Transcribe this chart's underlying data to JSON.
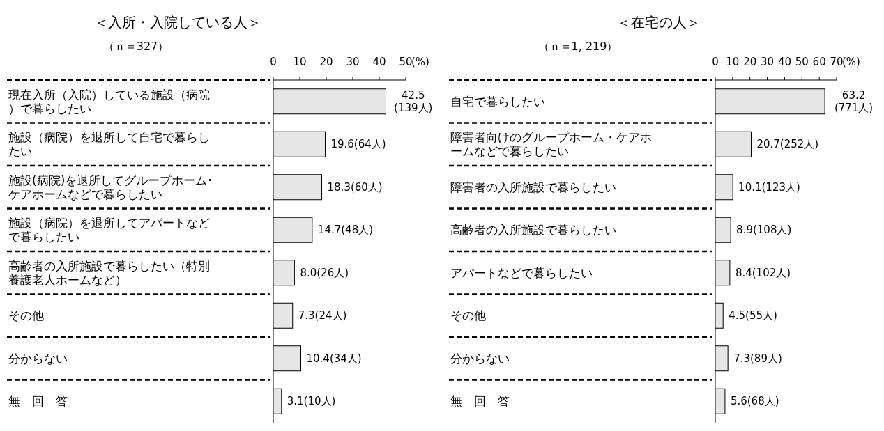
{
  "chart_data": [
    {
      "type": "bar",
      "orientation": "horizontal",
      "title": "＜入所・入院している人＞",
      "subtitle": "（ｎ＝327）",
      "x2label": "(%)",
      "color": "#e6e6e6",
      "x2lim": [
        0,
        50
      ],
      "x2ticks": [
        0,
        10,
        20,
        30,
        40,
        50
      ],
      "categories": [
        "現在入所（入院）している施設（病院）で暮らしたい",
        "施設（病院）を退所して自宅で暮らしたい",
        "施設(病院)を退所してグループホーム･ケアホームなどで暮らしたい",
        "施設（病院）を退所してアパートなどで暮らしたい",
        "高齢者の入所施設で暮らしたい（特別養護老人ホームなど）",
        "その他",
        "分からない",
        "無　回　答"
      ],
      "values": [
        42.5,
        19.6,
        18.3,
        14.7,
        8.0,
        7.3,
        10.4,
        3.1
      ],
      "value_labels": [
        "42.5(139人)",
        "19.6(64人)",
        "18.3(60人)",
        "14.7(48人)",
        "8.0(26人)",
        "7.3(24人)",
        "10.4(34人)",
        "3.1(10人)"
      ]
    },
    {
      "type": "bar",
      "orientation": "horizontal",
      "title": "＜在宅の人＞",
      "subtitle": "（ｎ＝1, 219）",
      "x2label": "(%)",
      "color": "#e6e6e6",
      "x2lim": [
        0,
        70
      ],
      "x2ticks": [
        0,
        10,
        20,
        30,
        40,
        50,
        60,
        70
      ],
      "categories": [
        "自宅で暮らしたい",
        "障害者向けのグループホーム・ケアホームなどで暮らしたい",
        "障害者の入所施設で暮らしたい",
        "高齢者の入所施設で暮らしたい",
        "アパートなどで暮らしたい",
        "その他",
        "分からない",
        "無　回　答"
      ],
      "values": [
        63.2,
        20.7,
        10.1,
        8.9,
        8.4,
        4.5,
        7.3,
        5.6
      ],
      "value_labels": [
        "63.2(771人)",
        "20.7(252人)",
        "10.1(123人)",
        "8.9(108人)",
        "8.4(102人)",
        "4.5(55人)",
        "7.3(89人)",
        "5.6(68人)"
      ]
    }
  ]
}
